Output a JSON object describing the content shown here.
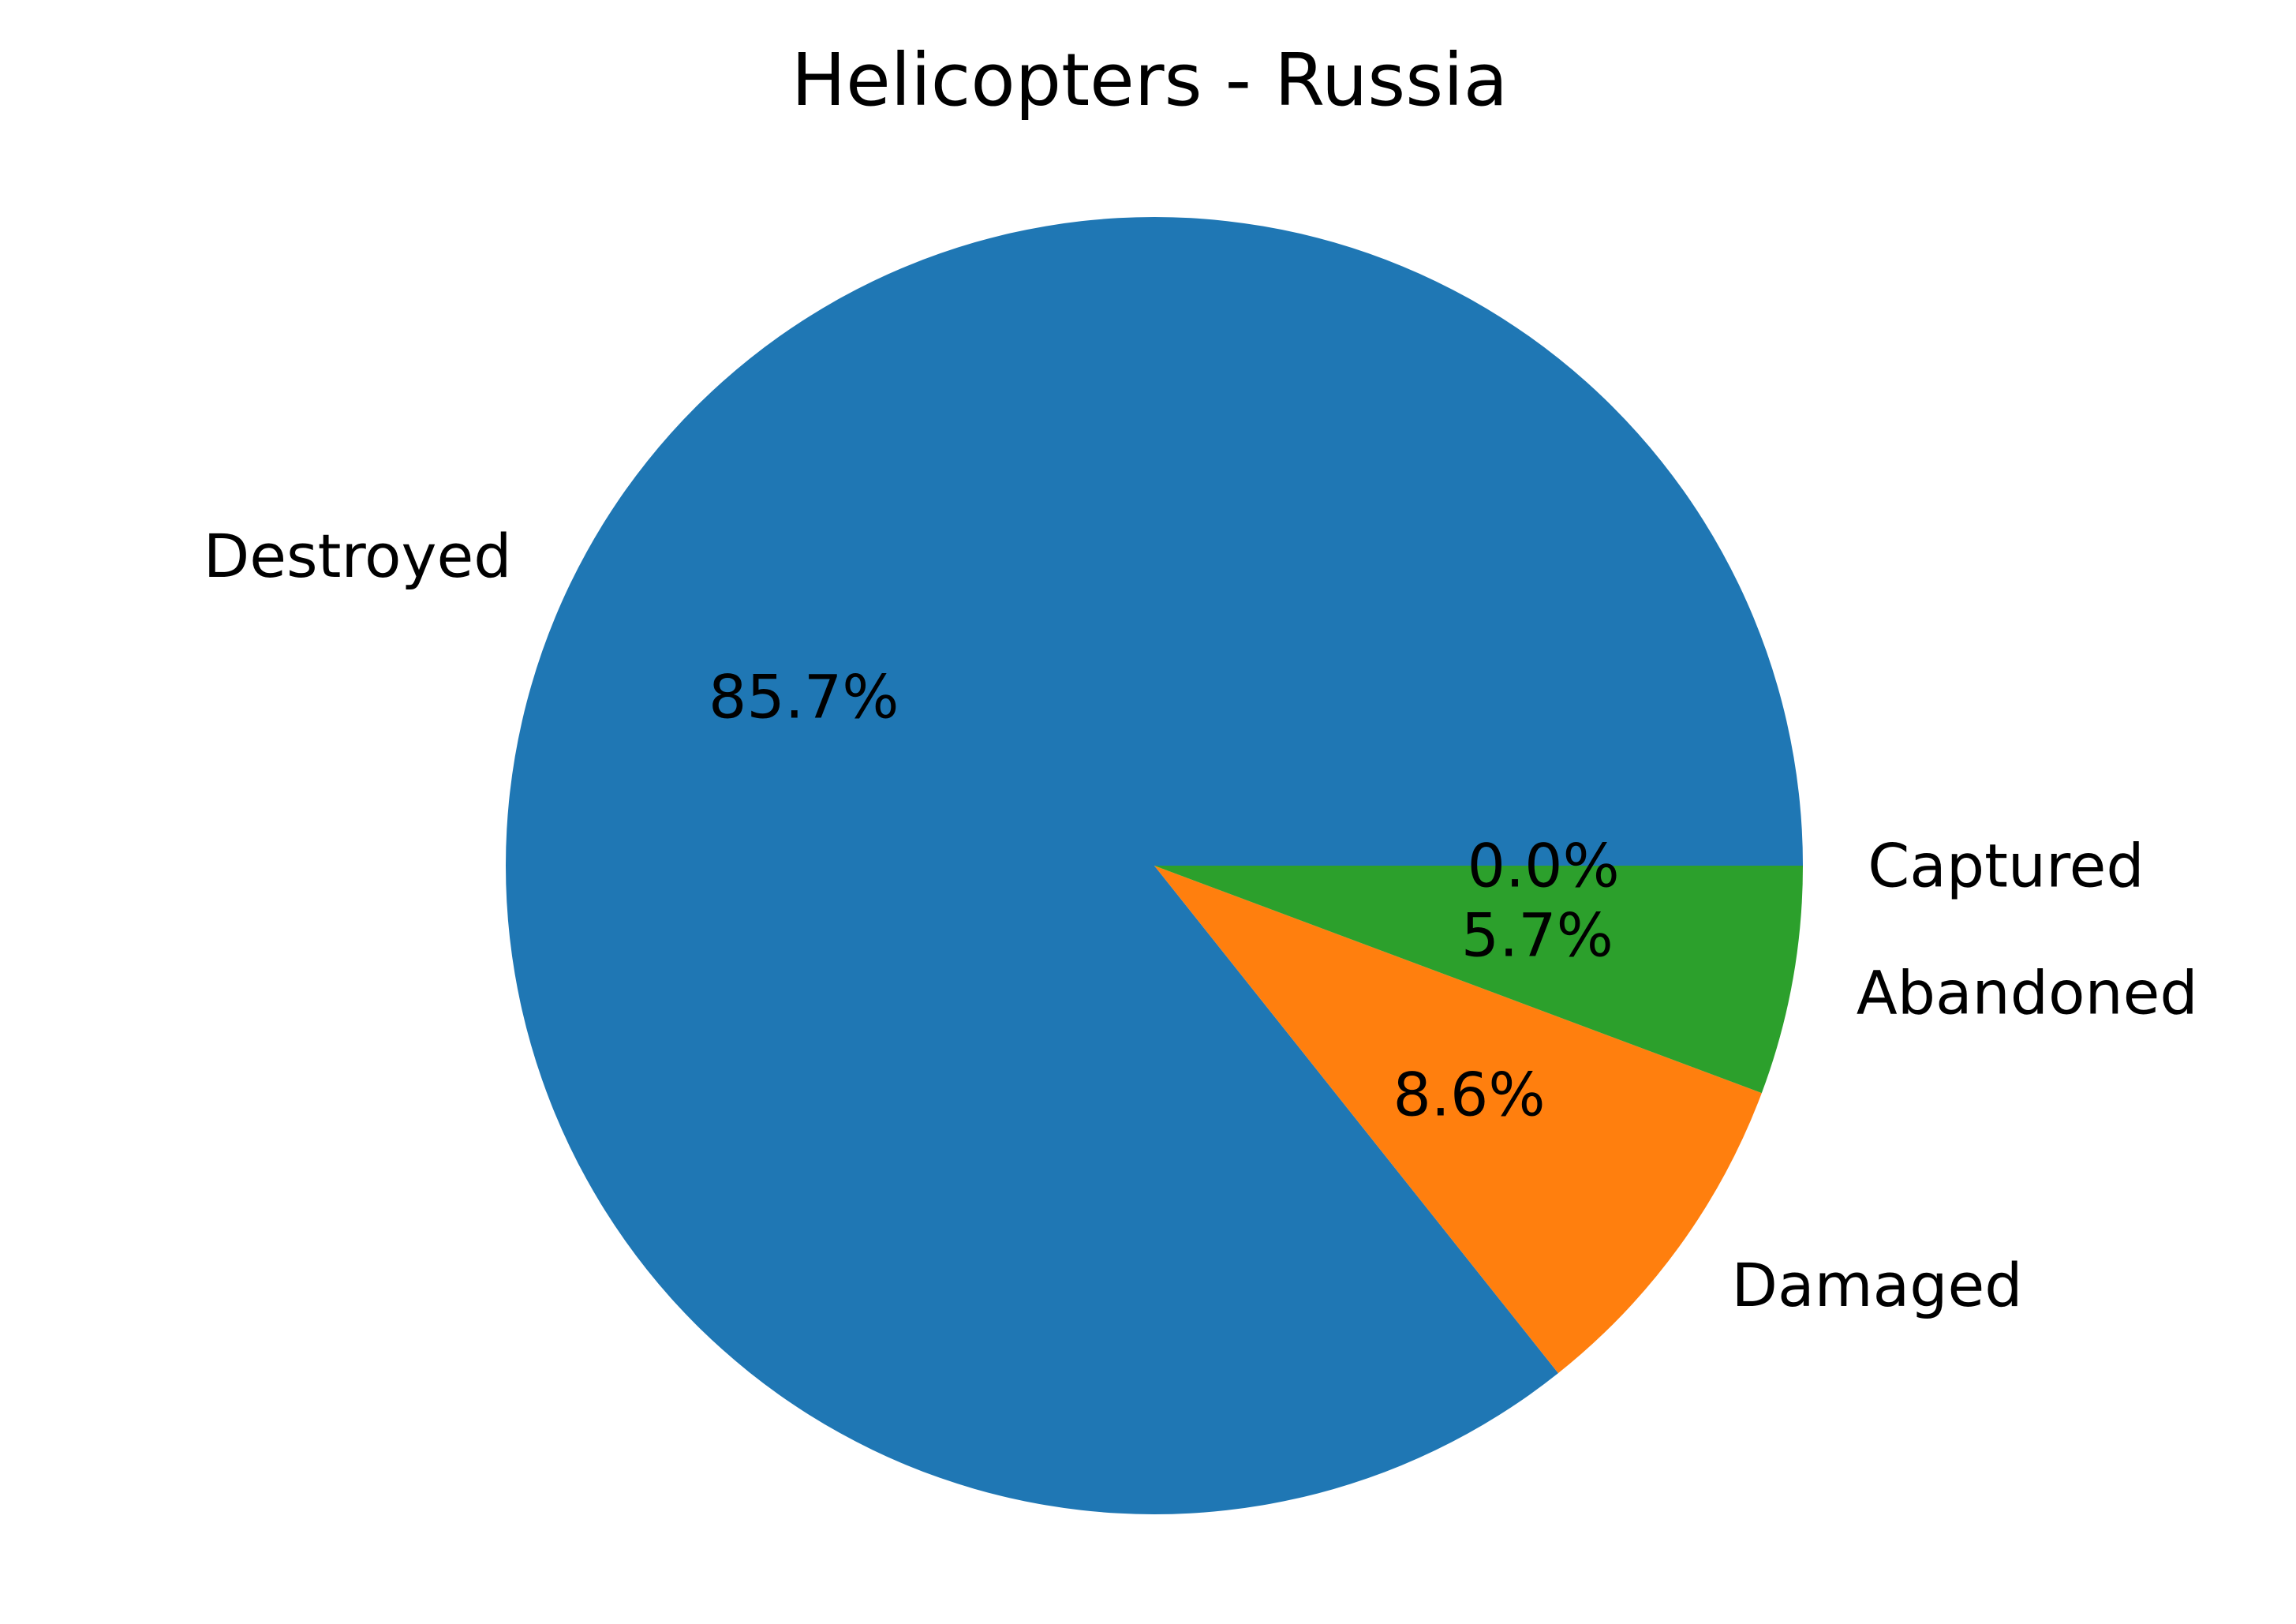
{
  "chart_data": {
    "type": "pie",
    "title": "Helicopters - Russia",
    "start_angle_deg": 0,
    "direction": "counterclockwise",
    "slices": [
      {
        "label": "Destroyed",
        "value": 85.7,
        "pct_label": "85.7%",
        "color": "#1f77b4"
      },
      {
        "label": "Damaged",
        "value": 8.6,
        "pct_label": "8.6%",
        "color": "#ff7f0e"
      },
      {
        "label": "Abandoned",
        "value": 5.7,
        "pct_label": "5.7%",
        "color": "#2ca02c"
      },
      {
        "label": "Captured",
        "value": 0.0,
        "pct_label": "0.0%",
        "color": "#d62728"
      }
    ]
  }
}
